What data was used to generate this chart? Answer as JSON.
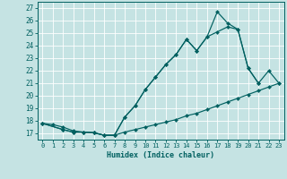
{
  "xlabel": "Humidex (Indice chaleur)",
  "bg_color": "#c5e3e3",
  "grid_color": "#b0d4d4",
  "line_color": "#006060",
  "xlim": [
    -0.5,
    23.5
  ],
  "ylim": [
    16.5,
    27.5
  ],
  "xticks": [
    0,
    1,
    2,
    3,
    4,
    5,
    6,
    7,
    8,
    9,
    10,
    11,
    12,
    13,
    14,
    15,
    16,
    17,
    18,
    19,
    20,
    21,
    22,
    23
  ],
  "yticks": [
    17,
    18,
    19,
    20,
    21,
    22,
    23,
    24,
    25,
    26,
    27
  ],
  "line_straight_x": [
    0,
    1,
    2,
    3,
    4,
    5,
    6,
    7,
    8,
    9,
    10,
    11,
    12,
    13,
    14,
    15,
    16,
    17,
    18,
    19,
    20,
    21,
    22,
    23
  ],
  "line_straight_y": [
    17.8,
    17.7,
    17.5,
    17.2,
    17.1,
    17.05,
    16.85,
    16.85,
    17.1,
    17.3,
    17.5,
    17.7,
    17.9,
    18.1,
    18.4,
    18.6,
    18.9,
    19.2,
    19.5,
    19.8,
    20.1,
    20.4,
    20.7,
    21.0
  ],
  "line_mid_x": [
    0,
    2,
    3,
    4,
    5,
    6,
    7,
    8,
    9,
    10,
    11,
    12,
    13,
    14,
    15,
    16,
    17,
    18,
    19,
    20,
    21
  ],
  "line_mid_y": [
    17.8,
    17.3,
    17.1,
    17.1,
    17.05,
    16.85,
    16.85,
    18.3,
    19.2,
    20.5,
    21.5,
    22.5,
    23.3,
    24.5,
    23.6,
    24.7,
    25.1,
    25.5,
    25.3,
    22.2,
    21.0
  ],
  "line_top_x": [
    0,
    2,
    3,
    4,
    5,
    6,
    7,
    8,
    9,
    10,
    11,
    12,
    13,
    14,
    15,
    16,
    17,
    18,
    19,
    20,
    21,
    22,
    23
  ],
  "line_top_y": [
    17.8,
    17.3,
    17.1,
    17.1,
    17.05,
    16.85,
    16.85,
    18.3,
    19.2,
    20.5,
    21.5,
    22.5,
    23.3,
    24.5,
    23.6,
    24.7,
    26.7,
    25.8,
    25.3,
    22.2,
    21.0,
    22.0,
    21.0
  ]
}
